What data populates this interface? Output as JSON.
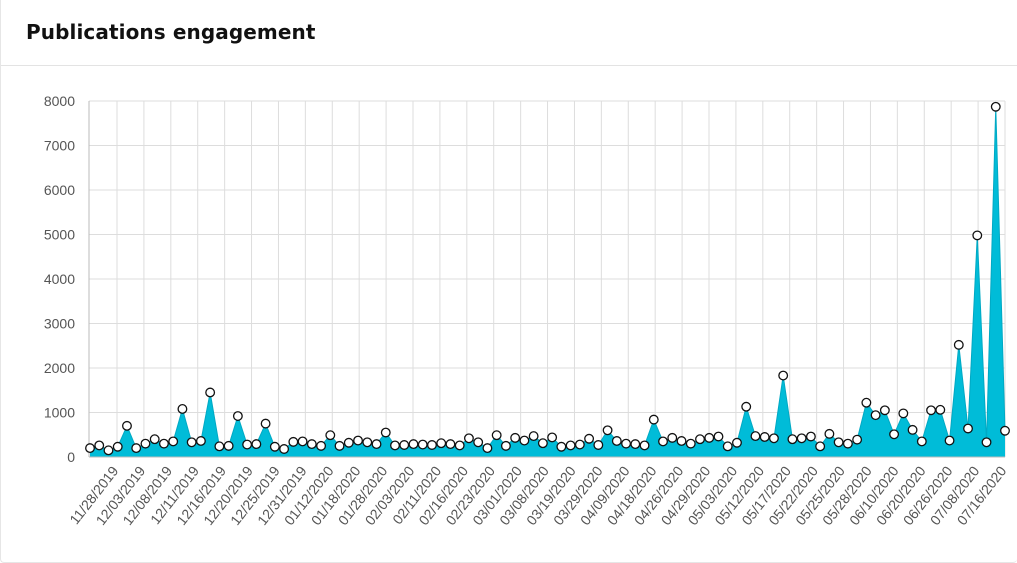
{
  "card": {
    "title": "Publications engagement"
  },
  "colors": {
    "area": "#00bcd8",
    "line": "#00a9c4",
    "grid": "#dddddd",
    "point_fill": "#ffffff",
    "point_stroke": "#111111"
  },
  "chart_data": {
    "type": "area",
    "title": "Publications engagement",
    "xlabel": "",
    "ylabel": "",
    "ylim": [
      0,
      8000
    ],
    "yticks": [
      0,
      1000,
      2000,
      3000,
      4000,
      5000,
      6000,
      7000,
      8000
    ],
    "grid": true,
    "markers": true,
    "x_tick_labels": [
      "11/28/2019",
      "12/03/2019",
      "12/08/2019",
      "12/11/2019",
      "12/16/2019",
      "12/20/2019",
      "12/25/2019",
      "12/31/2019",
      "01/12/2020",
      "01/18/2020",
      "01/28/2020",
      "02/03/2020",
      "02/11/2020",
      "02/16/2020",
      "02/23/2020",
      "03/01/2020",
      "03/08/2020",
      "03/19/2020",
      "03/29/2020",
      "04/09/2020",
      "04/18/2020",
      "04/26/2020",
      "04/29/2020",
      "05/03/2020",
      "05/12/2020",
      "05/17/2020",
      "05/22/2020",
      "05/25/2020",
      "05/28/2020",
      "06/10/2020",
      "06/20/2020",
      "06/26/2020",
      "07/08/2020",
      "07/16/2020"
    ],
    "series": [
      {
        "values": [
          200,
          260,
          150,
          230,
          700,
          200,
          300,
          400,
          300,
          350,
          1080,
          330,
          360,
          1450,
          240,
          250,
          920,
          280,
          290,
          750,
          230,
          180,
          340,
          350,
          290,
          250,
          490,
          250,
          320,
          370,
          330,
          290,
          550,
          260,
          270,
          290,
          280,
          270,
          310,
          290,
          260,
          420,
          330,
          200,
          490,
          250,
          430,
          370,
          470,
          310,
          440,
          230,
          260,
          280,
          410,
          270,
          600,
          360,
          300,
          290,
          260,
          840,
          350,
          430,
          360,
          300,
          400,
          430,
          460,
          240,
          320,
          1130,
          470,
          450,
          420,
          1830,
          400,
          420,
          460,
          240,
          520,
          330,
          300,
          390,
          1220,
          940,
          1050,
          510,
          980,
          610,
          350,
          1050,
          1060,
          370,
          2520,
          640,
          4980,
          330,
          7870,
          590
        ]
      }
    ]
  }
}
